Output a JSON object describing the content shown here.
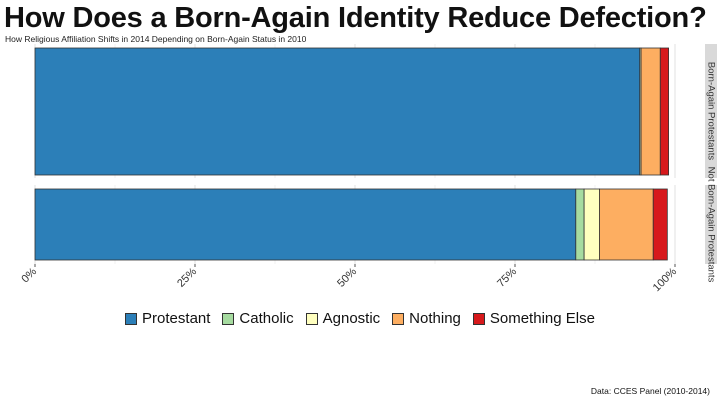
{
  "title": "How Does a Born-Again Identity Reduce Defection?",
  "subtitle": "How Religious Affiliation Shifts in 2014 Depending on Born-Again Status in 2010",
  "caption": "Data: CCES Panel (2010-2014)",
  "chart_data": {
    "type": "bar",
    "orientation": "horizontal",
    "stacked": true,
    "facets": [
      "Born-Again Protestants",
      "Not Born-Again Protestants"
    ],
    "series": [
      {
        "name": "Protestant",
        "color": "#2c7fb8",
        "values": [
          94.5,
          84.5
        ]
      },
      {
        "name": "Catholic",
        "color": "#a6dba0",
        "values": [
          0.0,
          1.3
        ]
      },
      {
        "name": "Agnostic",
        "color": "#ffffbf",
        "values": [
          0.2,
          2.4
        ]
      },
      {
        "name": "Nothing",
        "color": "#fdae61",
        "values": [
          3.0,
          8.4
        ]
      },
      {
        "name": "Something Else",
        "color": "#d7191c",
        "values": [
          1.3,
          2.2
        ]
      }
    ],
    "xlim": [
      0,
      100
    ],
    "xticks": [
      "0%",
      "25%",
      "50%",
      "75%",
      "100%"
    ],
    "grid": true,
    "legend_position": "bottom"
  }
}
